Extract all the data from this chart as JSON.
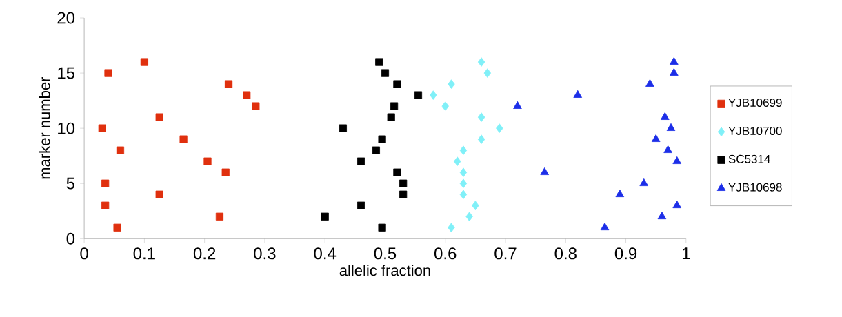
{
  "chart_data": {
    "type": "scatter",
    "xlabel": "allelic fraction",
    "ylabel": "marker number",
    "xlim": [
      0,
      1
    ],
    "ylim": [
      0,
      20
    ],
    "xticks": [
      0,
      0.1,
      0.2,
      0.3,
      0.4,
      0.5,
      0.6,
      0.7,
      0.8,
      0.9,
      1
    ],
    "yticks": [
      0,
      5,
      10,
      15,
      20
    ],
    "grid": false,
    "legend": "right",
    "series": [
      {
        "name": "YJB10699",
        "color": "#e0300e",
        "marker": "square",
        "x": [
          0.1,
          0.04,
          0.24,
          0.27,
          0.285,
          0.125,
          0.03,
          0.165,
          0.06,
          0.205,
          0.235,
          0.035,
          0.125,
          0.035,
          0.225,
          0.055
        ],
        "values": [
          16,
          15,
          14,
          13,
          12,
          11,
          10,
          9,
          8,
          7,
          6,
          5,
          4,
          3,
          2,
          1
        ]
      },
      {
        "name": "YJB10700",
        "color": "#80f0f8",
        "marker": "diamond",
        "x": [
          0.66,
          0.67,
          0.61,
          0.58,
          0.6,
          0.66,
          0.69,
          0.66,
          0.63,
          0.62,
          0.63,
          0.63,
          0.63,
          0.65,
          0.64,
          0.61
        ],
        "values": [
          16,
          15,
          14,
          13,
          12,
          11,
          10,
          9,
          8,
          7,
          6,
          5,
          4,
          3,
          2,
          1
        ]
      },
      {
        "name": "SC5314",
        "color": "#000000",
        "marker": "square",
        "x": [
          0.49,
          0.5,
          0.52,
          0.555,
          0.515,
          0.51,
          0.43,
          0.495,
          0.485,
          0.46,
          0.52,
          0.53,
          0.53,
          0.46,
          0.4,
          0.495
        ],
        "values": [
          16,
          15,
          14,
          13,
          12,
          11,
          10,
          9,
          8,
          7,
          6,
          5,
          4,
          3,
          2,
          1
        ]
      },
      {
        "name": "YJB10698",
        "color": "#1c2ee8",
        "marker": "triangle",
        "x": [
          0.98,
          0.98,
          0.94,
          0.82,
          0.72,
          0.965,
          0.975,
          0.95,
          0.97,
          0.985,
          0.765,
          0.93,
          0.89,
          0.985,
          0.96,
          0.865
        ],
        "values": [
          16,
          15,
          14,
          13,
          12,
          11,
          10,
          9,
          8,
          7,
          6,
          5,
          4,
          3,
          2,
          1
        ]
      }
    ]
  }
}
